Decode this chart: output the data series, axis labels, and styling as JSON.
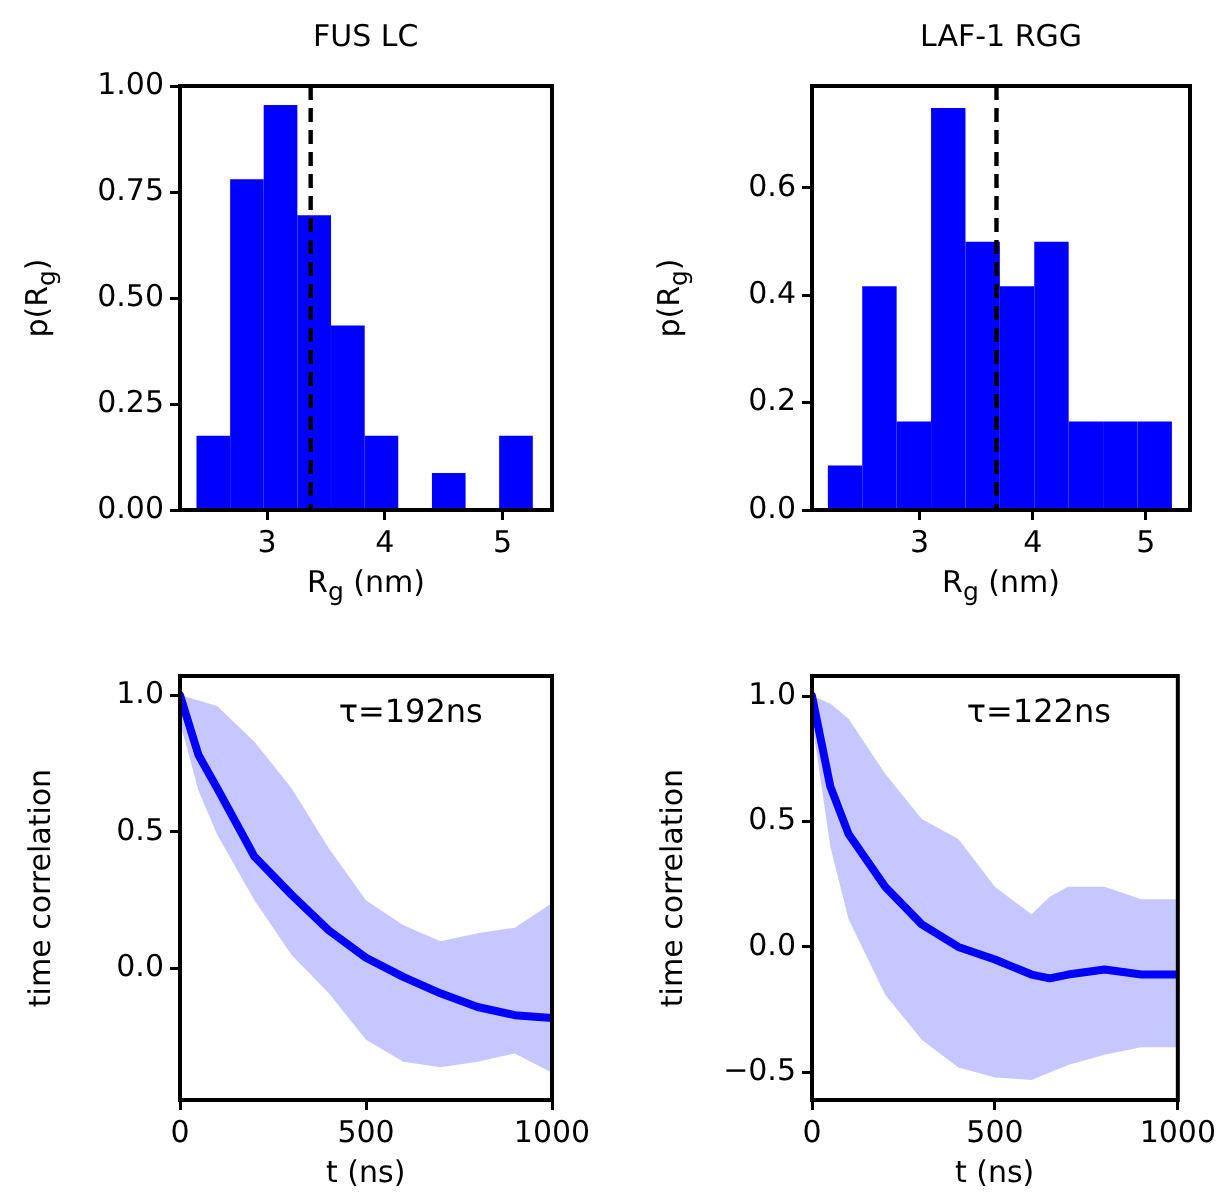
{
  "chart_data": [
    {
      "type": "histogram",
      "title": "FUS LC",
      "xlabel": "R$_{g}$ (nm)",
      "ylabel": "p(R$_{g}$)",
      "color": "#0000ff",
      "grid": false,
      "bins": [
        2.4,
        2.686,
        2.971,
        3.257,
        3.543,
        3.829,
        4.114,
        4.4,
        4.686,
        4.971,
        5.257
      ],
      "values": [
        0.175,
        0.78,
        0.955,
        0.695,
        0.435,
        0.175,
        0,
        0.087,
        0,
        0.175
      ],
      "xlim": [
        2.26,
        5.42
      ],
      "ylim": [
        0,
        1.0
      ],
      "xticks": [
        3,
        4,
        5
      ],
      "yticks": [
        {
          "value": 0,
          "label": "0.00"
        },
        {
          "value": 0.25,
          "label": "0.25"
        },
        {
          "value": 0.5,
          "label": "0.50"
        },
        {
          "value": 0.75,
          "label": "0.75"
        },
        {
          "value": 1,
          "label": "1.00"
        }
      ],
      "ref_lines": [
        {
          "axis": "x",
          "value": 3.37,
          "color": "#000000",
          "line_style": "dashed"
        }
      ]
    },
    {
      "type": "histogram",
      "title": "LAF-1 RGG",
      "xlabel": "R$_{g}$ (nm)",
      "ylabel": "p(R$_{g}$)",
      "color": "#0000ff",
      "grid": false,
      "bins": [
        2.19,
        2.494,
        2.798,
        3.102,
        3.406,
        3.71,
        4.014,
        4.318,
        4.622,
        4.926,
        5.23
      ],
      "values": [
        0.083,
        0.417,
        0.165,
        0.749,
        0.5,
        0.417,
        0.5,
        0.165,
        0.165,
        0.165
      ],
      "xlim": [
        2.05,
        5.39
      ],
      "ylim": [
        0,
        0.79
      ],
      "xticks": [
        3,
        4,
        5
      ],
      "yticks": [
        {
          "value": 0,
          "label": "0.0"
        },
        {
          "value": 0.2,
          "label": "0.2"
        },
        {
          "value": 0.4,
          "label": "0.4"
        },
        {
          "value": 0.6,
          "label": "0.6"
        }
      ],
      "ref_lines": [
        {
          "axis": "x",
          "value": 3.68,
          "color": "#000000",
          "line_style": "dashed"
        }
      ]
    },
    {
      "type": "line",
      "xlabel": "t (ns)",
      "ylabel": "time correlation",
      "grid": false,
      "marker": "none",
      "annotations": [
        "τ=192ns"
      ],
      "x": [
        0,
        50,
        100,
        200,
        300,
        400,
        500,
        600,
        700,
        800,
        900,
        1000
      ],
      "series": [
        {
          "color": "#0000ff",
          "values": [
            1.0,
            0.78,
            0.66,
            0.41,
            0.27,
            0.14,
            0.04,
            -0.03,
            -0.09,
            -0.14,
            -0.17,
            -0.18
          ],
          "lower": [
            0.9,
            0.65,
            0.49,
            0.25,
            0.05,
            -0.09,
            -0.26,
            -0.34,
            -0.36,
            -0.34,
            -0.31,
            -0.38
          ],
          "upper": [
            1.0,
            0.98,
            0.96,
            0.83,
            0.66,
            0.44,
            0.25,
            0.16,
            0.1,
            0.13,
            0.15,
            0.24
          ]
        }
      ],
      "xlim": [
        0,
        1000
      ],
      "ylim": [
        -0.48,
        1.07
      ],
      "xticks": [
        0,
        500,
        1000
      ],
      "yticks": [
        {
          "value": 0,
          "label": "0.0"
        },
        {
          "value": 0.5,
          "label": "0.5"
        },
        {
          "value": 1,
          "label": "1.0"
        }
      ]
    },
    {
      "type": "line",
      "xlabel": "t (ns)",
      "ylabel": "time correlation",
      "grid": false,
      "marker": "none",
      "annotations": [
        "τ=122ns"
      ],
      "x": [
        0,
        50,
        100,
        200,
        300,
        400,
        500,
        600,
        650,
        700,
        800,
        900,
        1000
      ],
      "series": [
        {
          "color": "#0000ff",
          "values": [
            1.0,
            0.64,
            0.45,
            0.24,
            0.09,
            0.0,
            -0.05,
            -0.11,
            -0.125,
            -0.11,
            -0.09,
            -0.11,
            -0.11
          ],
          "lower": [
            0.9,
            0.4,
            0.11,
            -0.19,
            -0.37,
            -0.48,
            -0.52,
            -0.53,
            -0.5,
            -0.47,
            -0.43,
            -0.4,
            -0.4
          ],
          "upper": [
            1.0,
            0.97,
            0.91,
            0.69,
            0.51,
            0.43,
            0.24,
            0.13,
            0.2,
            0.24,
            0.24,
            0.19,
            0.19
          ]
        }
      ],
      "xlim": [
        0,
        1000
      ],
      "ylim": [
        -0.61,
        1.08
      ],
      "xticks": [
        0,
        500,
        1000
      ],
      "yticks": [
        {
          "value": -0.5,
          "label": "−0.5"
        },
        {
          "value": 0,
          "label": "0.0"
        },
        {
          "value": 0.5,
          "label": "0.5"
        },
        {
          "value": 1,
          "label": "1.0"
        }
      ]
    }
  ]
}
